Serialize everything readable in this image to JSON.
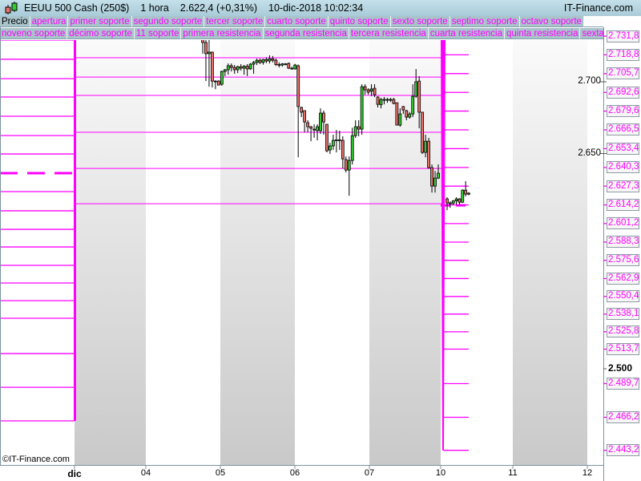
{
  "header": {
    "instrument": "EEUU 500 Cash (250$)",
    "timeframe": "1 hora",
    "price_change": "2.622,4 (+0,31%)",
    "datetime": "10-dic-2018 10:02:34",
    "brand": "IT-Finance.com",
    "icon": "candlestick-icon"
  },
  "legend_row1": [
    "Precio",
    "apertura",
    "primer soporte",
    "segundo soporte",
    "tercer soporte",
    "cuarto soporte",
    "quinto soporte",
    "sexto soporte",
    "septimo soporte",
    "octavo soporte"
  ],
  "legend_row2": [
    "noveno soporte",
    "décimo soporte",
    "11 soporte",
    "primera resistencia",
    "segunda resistencia",
    "tercera resistencia",
    "cuarta resistencia",
    "quinta resistencia",
    "sexta resistencia"
  ],
  "copyright": "©IT-Finance.com",
  "colors": {
    "levels": "#ff00ff",
    "up": "#33cc33",
    "down": "#e8706a",
    "title_bar": "#b4d4e0",
    "tab": "#a9c3cb"
  },
  "chart_data": {
    "type": "candlestick",
    "ylim": [
      2430,
      2758
    ],
    "y_ticks": [
      {
        "label": "2.700",
        "value": 2700,
        "bold": false
      },
      {
        "label": "2.650",
        "value": 2650,
        "bold": false
      },
      {
        "label": "2.500",
        "value": 2500,
        "bold": true
      }
    ],
    "level_labels": [
      {
        "label": "2.731,8",
        "value": 2731.8
      },
      {
        "label": "2.718,8",
        "value": 2718.8
      },
      {
        "label": "2.705,7",
        "value": 2705.7
      },
      {
        "label": "2.692,6",
        "value": 2692.6
      },
      {
        "label": "2.679,6",
        "value": 2679.6
      },
      {
        "label": "2.666,5",
        "value": 2666.5
      },
      {
        "label": "2.653,4",
        "value": 2653.4
      },
      {
        "label": "2.640,3",
        "value": 2640.3
      },
      {
        "label": "2.627,3",
        "value": 2627.3
      },
      {
        "label": "2.614,2",
        "value": 2614.2
      },
      {
        "label": "2.601,2",
        "value": 2601.2
      },
      {
        "label": "2.588,3",
        "value": 2588.3
      },
      {
        "label": "2.575,6",
        "value": 2575.6
      },
      {
        "label": "2.562,9",
        "value": 2562.9
      },
      {
        "label": "2.550,4",
        "value": 2550.4
      },
      {
        "label": "2.538,1",
        "value": 2538.1
      },
      {
        "label": "2.525,8",
        "value": 2525.8
      },
      {
        "label": "2.513,7",
        "value": 2513.7
      },
      {
        "label": "2.489,7",
        "value": 2489.7
      },
      {
        "label": "2.466,2",
        "value": 2466.2
      },
      {
        "label": "2.443,2",
        "value": 2443.2
      }
    ],
    "x_ticks": [
      {
        "label": "dic",
        "bold": true
      },
      {
        "label": "04"
      },
      {
        "label": "05"
      },
      {
        "label": "06"
      },
      {
        "label": "07"
      },
      {
        "label": "10"
      },
      {
        "label": "11"
      },
      {
        "label": "12"
      }
    ],
    "previous_week_levels": [
      2729.1,
      2715.7,
      2702.2,
      2689.4,
      2676.0,
      2662.5,
      2649.7,
      2623.5,
      2610.1,
      2597.2,
      2584.9,
      2572.1,
      2559.8,
      2547.5,
      2535.2,
      2510.6,
      2487.1,
      2463.7
    ],
    "previous_week_pivot": 2636.3,
    "week_levels": [
      2716.8,
      2703.3,
      2690.5,
      2664.8,
      2639.6,
      2615.0
    ],
    "current_pivot": 2613.9,
    "candles_session1": [
      [
        2730.2,
        2731,
        2719.6,
        2727.4
      ],
      [
        2727.4,
        2729.1,
        2700.5,
        2719.6
      ],
      [
        2719.6,
        2729.1,
        2696.6,
        2720.7
      ],
      [
        2720.7,
        2721,
        2696.1,
        2700.5
      ],
      [
        2700.5,
        2701.1,
        2694.9,
        2700
      ],
      [
        2700.5,
        2701.1,
        2697.7,
        2697.7
      ],
      [
        2698.3,
        2707.8,
        2697.2,
        2707.2
      ],
      [
        2707.2,
        2708.9,
        2703.9,
        2708.4
      ],
      [
        2708.4,
        2712.8,
        2705,
        2711.2
      ],
      [
        2711.2,
        2712.8,
        2707.2,
        2710
      ],
      [
        2710,
        2711.7,
        2705.6,
        2708.4
      ],
      [
        2708.4,
        2711.2,
        2706.1,
        2710.5
      ],
      [
        2710.5,
        2712.3,
        2707.8,
        2709.5
      ],
      [
        2709.5,
        2711.7,
        2705,
        2710.8
      ],
      [
        2710.8,
        2712.3,
        2704,
        2709
      ],
      [
        2709,
        2713,
        2708.4,
        2712.3
      ],
      [
        2712.3,
        2714.5,
        2705.6,
        2713.5
      ],
      [
        2713.5,
        2716.2,
        2711.7,
        2715
      ],
      [
        2715,
        2716.2,
        2712.3,
        2713.5
      ],
      [
        2713.5,
        2716,
        2712,
        2715.5
      ],
      [
        2715.5,
        2717,
        2713,
        2714.5
      ],
      [
        2714.5,
        2718.5,
        2712.8,
        2716
      ],
      [
        2716,
        2718,
        2713.5,
        2715
      ],
      [
        2715,
        2716.2,
        2711,
        2712
      ],
      [
        2712,
        2713.5,
        2710,
        2711.7
      ],
      [
        2711.7,
        2713,
        2710.5,
        2712.5
      ],
      [
        2712.5,
        2713,
        2711.5,
        2712.3
      ],
      [
        2712.8,
        2713.5,
        2708.9,
        2709.5
      ],
      [
        2709.5,
        2710.5,
        2708.4,
        2709
      ],
      [
        2709,
        2712.5,
        2708.5,
        2711.7
      ],
      [
        2711.2,
        2712,
        2647.4,
        2682.7
      ],
      [
        2682.1,
        2682.7,
        2675.4,
        2678.8
      ],
      [
        2679.9,
        2679.9,
        2664.8,
        2672
      ],
      [
        2671.5,
        2673.2,
        2664.8,
        2668.7
      ],
      [
        2668.7,
        2669.2,
        2658.6,
        2667.6
      ],
      [
        2667,
        2670.4,
        2661,
        2666.4
      ],
      [
        2666,
        2670.4,
        2659.2,
        2668.7
      ],
      [
        2665.9,
        2681.5,
        2663.6,
        2678.2
      ],
      [
        2678.2,
        2679.9,
        2663.1,
        2672
      ],
      [
        2670.4,
        2670.4,
        2650.8,
        2651.9
      ],
      [
        2652.5,
        2657.5,
        2649.7,
        2655.3
      ],
      [
        2655.3,
        2663.1,
        2652.5,
        2659.2
      ],
      [
        2659.2,
        2666.4,
        2650.8,
        2659.5
      ],
      [
        2659.5,
        2665.9,
        2652.5,
        2659.2
      ],
      [
        2659.2,
        2662,
        2639.6,
        2646.3
      ],
      [
        2645.8,
        2648,
        2636.8,
        2638.5
      ],
      [
        2638.5,
        2648,
        2620.6,
        2645.2
      ],
      [
        2645.2,
        2668,
        2642.4,
        2662.5
      ],
      [
        2662.5,
        2673.2,
        2660.9,
        2668.7
      ],
      [
        2668.7,
        2673.2,
        2662,
        2667
      ],
      [
        2667,
        2698.3,
        2663.1,
        2696.6
      ],
      [
        2696.6,
        2698.3,
        2691,
        2694.4
      ],
      [
        2694.4,
        2695.5,
        2691,
        2692.7
      ],
      [
        2693.5,
        2698.3,
        2690,
        2695
      ],
      [
        2695.5,
        2698.3,
        2689.4,
        2691
      ],
      [
        2689.4,
        2689.9,
        2682.1,
        2684.3
      ],
      [
        2684,
        2688.8,
        2681.5,
        2687.7
      ],
      [
        2687.7,
        2689.4,
        2684.3,
        2687.7
      ],
      [
        2687.7,
        2688.8,
        2685.4,
        2687.7
      ],
      [
        2687.7,
        2688.8,
        2686,
        2687.7
      ],
      [
        2687.7,
        2688.8,
        2684.3,
        2684.9
      ],
      [
        2685.4,
        2685.4,
        2669.8,
        2669.8
      ],
      [
        2669.8,
        2681.5,
        2668.7,
        2677.6
      ],
      [
        2682.7,
        2683.2,
        2677.6,
        2680.4
      ],
      [
        2679.9,
        2680.4,
        2673.2,
        2675.4
      ],
      [
        2675.4,
        2679,
        2674.3,
        2677.6
      ],
      [
        2677.6,
        2698.3,
        2675.4,
        2689.9
      ],
      [
        2689.9,
        2708.9,
        2688.8,
        2700
      ],
      [
        2700.5,
        2703.9,
        2667.6,
        2678.8
      ],
      [
        2678.8,
        2678.8,
        2649.7,
        2650.8
      ],
      [
        2650.8,
        2663.1,
        2647.4,
        2658.6
      ],
      [
        2658.6,
        2660.9,
        2639.6,
        2640.2
      ],
      [
        2640.2,
        2642.4,
        2622.8,
        2627.3
      ],
      [
        2627.3,
        2637.9,
        2622.8,
        2632.9
      ],
      [
        2632.9,
        2642.4,
        2632.3,
        2636.3
      ]
    ],
    "candles_session2": [
      [
        2618.4,
        2619.5,
        2610.5,
        2615.6
      ],
      [
        2615.6,
        2616.7,
        2612.2,
        2615.3
      ],
      [
        2615.3,
        2617.5,
        2614,
        2617
      ],
      [
        2617,
        2619.5,
        2614.5,
        2618.4
      ],
      [
        2618.4,
        2618.9,
        2614.5,
        2616.1
      ],
      [
        2616.1,
        2625,
        2615.6,
        2624.5
      ],
      [
        2624.5,
        2630.7,
        2620.1,
        2621.7
      ],
      [
        2621.7,
        2623,
        2621,
        2622.4
      ]
    ]
  }
}
